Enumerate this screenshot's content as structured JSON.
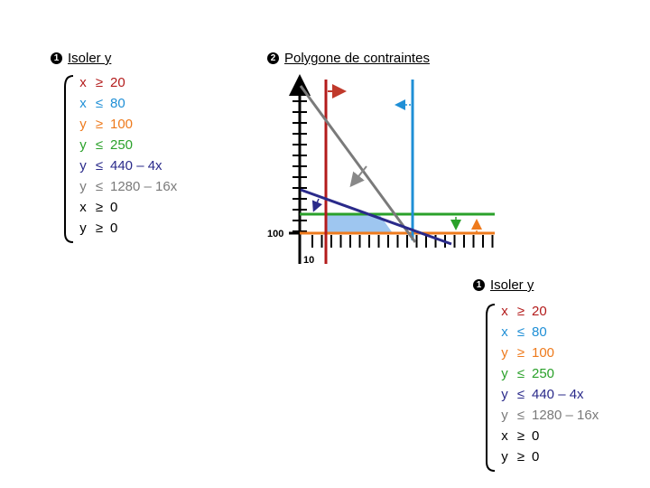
{
  "left_panel": {
    "heading": {
      "number": "1",
      "title": "Isoler y"
    }
  },
  "right_panel": {
    "heading": {
      "number": "2",
      "title": "Polygone de contraintes"
    }
  },
  "bottom_panel": {
    "heading": {
      "number": "1",
      "title": "Isoler y"
    }
  },
  "inequalities": [
    {
      "var": "x",
      "op": "≥",
      "rhs": "20",
      "color": "#b31b1b"
    },
    {
      "var": "x",
      "op": "≤",
      "rhs": "80",
      "color": "#1f8fd6"
    },
    {
      "var": "y",
      "op": "≥",
      "rhs": "100",
      "color": "#ee7a1c"
    },
    {
      "var": "y",
      "op": "≤",
      "rhs": "250",
      "color": "#2aa12a"
    },
    {
      "var": "y",
      "op": "≤",
      "rhs": "440 – 4x",
      "color": "#2a2a8a"
    },
    {
      "var": "y",
      "op": "≤",
      "rhs": "1280 – 16x",
      "color": "#7a7a7a"
    },
    {
      "var": "x",
      "op": "≥",
      "rhs": "0",
      "color": "#000000"
    },
    {
      "var": "y",
      "op": "≥",
      "rhs": "0",
      "color": "#000000"
    }
  ],
  "graph": {
    "y_tick_label": "100",
    "x_tick_label": "10",
    "feasible_color": "#9ec6f0",
    "x_axis": {
      "tick_count": 20
    },
    "y_axis": {
      "tick_count": 14
    }
  }
}
